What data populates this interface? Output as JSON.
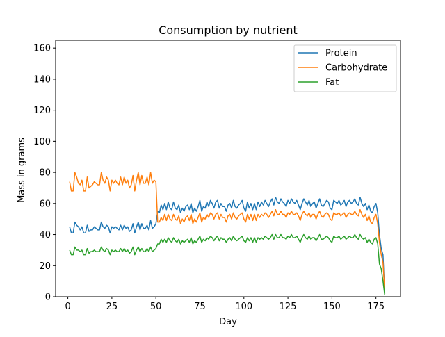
{
  "chart_data": {
    "type": "line",
    "title": "Consumption by nutrient",
    "xlabel": "Day",
    "ylabel": "Mass in grams",
    "xlim": [
      -6.95,
      188.95
    ],
    "ylim": [
      0,
      165
    ],
    "xticks": [
      0,
      25,
      50,
      75,
      100,
      125,
      150,
      175
    ],
    "yticks": [
      0,
      20,
      40,
      60,
      80,
      100,
      120,
      140,
      160
    ],
    "grid": false,
    "legend_position": "top-right",
    "x": [
      1,
      2,
      3,
      4,
      5,
      6,
      7,
      8,
      9,
      10,
      11,
      12,
      13,
      14,
      15,
      16,
      17,
      18,
      19,
      20,
      21,
      22,
      23,
      24,
      25,
      26,
      27,
      28,
      29,
      30,
      31,
      32,
      33,
      34,
      35,
      36,
      37,
      38,
      39,
      40,
      41,
      42,
      43,
      44,
      45,
      46,
      47,
      48,
      49,
      50,
      51,
      52,
      53,
      54,
      55,
      56,
      57,
      58,
      59,
      60,
      61,
      62,
      63,
      64,
      65,
      66,
      67,
      68,
      69,
      70,
      71,
      72,
      73,
      74,
      75,
      76,
      77,
      78,
      79,
      80,
      81,
      82,
      83,
      84,
      85,
      86,
      87,
      88,
      89,
      90,
      91,
      92,
      93,
      94,
      95,
      96,
      97,
      98,
      99,
      100,
      101,
      102,
      103,
      104,
      105,
      106,
      107,
      108,
      109,
      110,
      111,
      112,
      113,
      114,
      115,
      116,
      117,
      118,
      119,
      120,
      121,
      122,
      123,
      124,
      125,
      126,
      127,
      128,
      129,
      130,
      131,
      132,
      133,
      134,
      135,
      136,
      137,
      138,
      139,
      140,
      141,
      142,
      143,
      144,
      145,
      146,
      147,
      148,
      149,
      150,
      151,
      152,
      153,
      154,
      155,
      156,
      157,
      158,
      159,
      160,
      161,
      162,
      163,
      164,
      165,
      166,
      167,
      168,
      169,
      170,
      171,
      172,
      173,
      174,
      175,
      176,
      177,
      178,
      179,
      180
    ],
    "series": [
      {
        "name": "Protein",
        "color": "#1f77b4",
        "values": [
          45,
          41,
          41,
          48,
          46,
          45,
          43,
          45,
          41,
          41,
          46,
          42,
          43,
          43,
          45,
          44,
          43,
          43,
          48,
          45,
          44,
          46,
          45,
          41,
          45,
          44,
          45,
          44,
          43,
          46,
          43,
          46,
          44,
          45,
          42,
          43,
          47,
          41,
          45,
          48,
          43,
          47,
          44,
          44,
          46,
          43,
          49,
          44,
          45,
          47,
          55,
          54,
          59,
          56,
          60,
          56,
          61,
          57,
          56,
          61,
          57,
          56,
          59,
          54,
          57,
          55,
          58,
          59,
          56,
          60,
          54,
          57,
          55,
          58,
          62,
          55,
          58,
          57,
          61,
          58,
          62,
          60,
          57,
          61,
          62,
          57,
          60,
          58,
          58,
          55,
          59,
          60,
          57,
          62,
          58,
          57,
          59,
          60,
          62,
          57,
          55,
          61,
          57,
          60,
          56,
          60,
          56,
          61,
          58,
          61,
          59,
          62,
          60,
          58,
          61,
          63,
          59,
          64,
          61,
          60,
          63,
          61,
          60,
          58,
          62,
          60,
          63,
          61,
          60,
          62,
          59,
          56,
          60,
          63,
          61,
          59,
          62,
          58,
          60,
          61,
          57,
          60,
          63,
          59,
          58,
          60,
          62,
          61,
          57,
          56,
          62,
          61,
          60,
          62,
          59,
          60,
          62,
          58,
          61,
          62,
          60,
          61,
          63,
          60,
          59,
          64,
          60,
          58,
          60,
          56,
          59,
          55,
          54,
          58,
          60,
          54,
          40,
          31,
          27,
          2
        ]
      },
      {
        "name": "Carbohydrate",
        "color": "#ff7f0e",
        "values": [
          74,
          68,
          68,
          80,
          77,
          73,
          72,
          75,
          68,
          68,
          77,
          70,
          71,
          72,
          74,
          73,
          72,
          72,
          80,
          75,
          73,
          77,
          75,
          68,
          75,
          73,
          75,
          73,
          72,
          77,
          72,
          77,
          73,
          75,
          70,
          72,
          78,
          68,
          75,
          80,
          72,
          78,
          73,
          73,
          77,
          72,
          80,
          73,
          75,
          74,
          48,
          48,
          51,
          49,
          53,
          49,
          53,
          50,
          49,
          53,
          50,
          49,
          52,
          47,
          50,
          48,
          51,
          52,
          49,
          53,
          47,
          50,
          48,
          51,
          54,
          48,
          51,
          50,
          53,
          51,
          54,
          53,
          50,
          53,
          54,
          50,
          53,
          51,
          51,
          48,
          52,
          53,
          50,
          54,
          51,
          50,
          52,
          53,
          54,
          50,
          48,
          53,
          50,
          53,
          49,
          53,
          49,
          53,
          51,
          53,
          52,
          54,
          53,
          51,
          53,
          55,
          52,
          56,
          53,
          53,
          55,
          53,
          53,
          51,
          54,
          53,
          55,
          53,
          53,
          54,
          52,
          49,
          53,
          55,
          53,
          52,
          54,
          51,
          53,
          53,
          50,
          53,
          55,
          52,
          51,
          53,
          54,
          53,
          50,
          49,
          54,
          53,
          53,
          54,
          52,
          53,
          54,
          51,
          53,
          54,
          53,
          53,
          55,
          53,
          52,
          56,
          53,
          51,
          53,
          49,
          52,
          48,
          47,
          51,
          53,
          47,
          35,
          27,
          22,
          2
        ]
      },
      {
        "name": "Fat",
        "color": "#2ca02c",
        "values": [
          30,
          27,
          27,
          32,
          30,
          30,
          29,
          30,
          27,
          27,
          31,
          28,
          29,
          29,
          30,
          29,
          29,
          29,
          32,
          30,
          29,
          31,
          30,
          27,
          30,
          29,
          30,
          29,
          29,
          31,
          29,
          31,
          29,
          30,
          28,
          29,
          32,
          27,
          30,
          32,
          29,
          31,
          29,
          29,
          31,
          29,
          32,
          29,
          30,
          31,
          34,
          34,
          37,
          35,
          37,
          35,
          38,
          36,
          35,
          38,
          36,
          35,
          37,
          34,
          36,
          35,
          36,
          37,
          35,
          38,
          34,
          36,
          35,
          37,
          39,
          35,
          37,
          36,
          38,
          37,
          39,
          38,
          36,
          38,
          39,
          36,
          38,
          37,
          37,
          35,
          37,
          38,
          36,
          39,
          37,
          36,
          37,
          38,
          39,
          36,
          35,
          38,
          36,
          38,
          35,
          38,
          35,
          38,
          37,
          38,
          37,
          39,
          38,
          37,
          38,
          40,
          37,
          40,
          38,
          38,
          40,
          38,
          38,
          37,
          39,
          38,
          40,
          38,
          38,
          39,
          37,
          35,
          38,
          40,
          38,
          37,
          39,
          37,
          38,
          38,
          36,
          38,
          40,
          37,
          37,
          38,
          39,
          38,
          36,
          35,
          39,
          38,
          38,
          39,
          37,
          38,
          39,
          37,
          38,
          39,
          38,
          38,
          40,
          38,
          37,
          40,
          38,
          37,
          38,
          35,
          37,
          35,
          34,
          37,
          38,
          34,
          21,
          18,
          10,
          1
        ]
      }
    ]
  }
}
